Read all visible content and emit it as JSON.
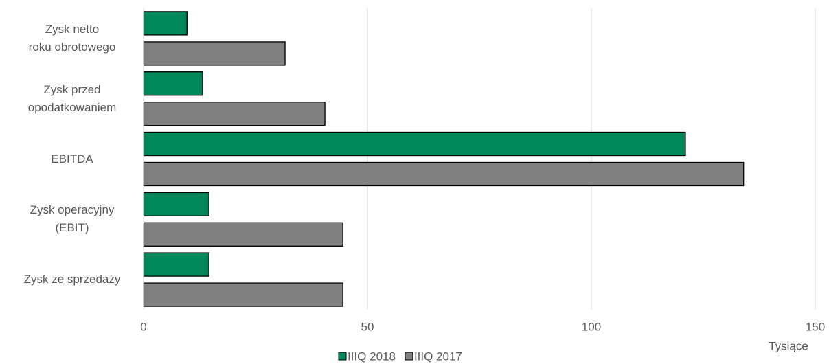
{
  "chart_data": {
    "type": "hbar",
    "categories": [
      "Zysk netto\nroku obrotowego",
      "Zysk przed\nopodatkowaniem",
      "EBITDA",
      "Zysk operacyjny\n(EBIT)",
      "Zysk ze sprzedaży"
    ],
    "series": [
      {
        "name": "IIIQ 2018",
        "color": "#00875a",
        "values": [
          9.7,
          13.2,
          121,
          14.6,
          14.6
        ]
      },
      {
        "name": "IIIQ 2017",
        "color": "#808080",
        "values": [
          31.6,
          40.5,
          134,
          44.5,
          44.5
        ]
      }
    ],
    "xlim": [
      0,
      150
    ],
    "xticks": [
      0,
      50,
      100,
      150
    ],
    "grid": true,
    "x_unit_label": "Tysiące",
    "legend": "bottom"
  }
}
